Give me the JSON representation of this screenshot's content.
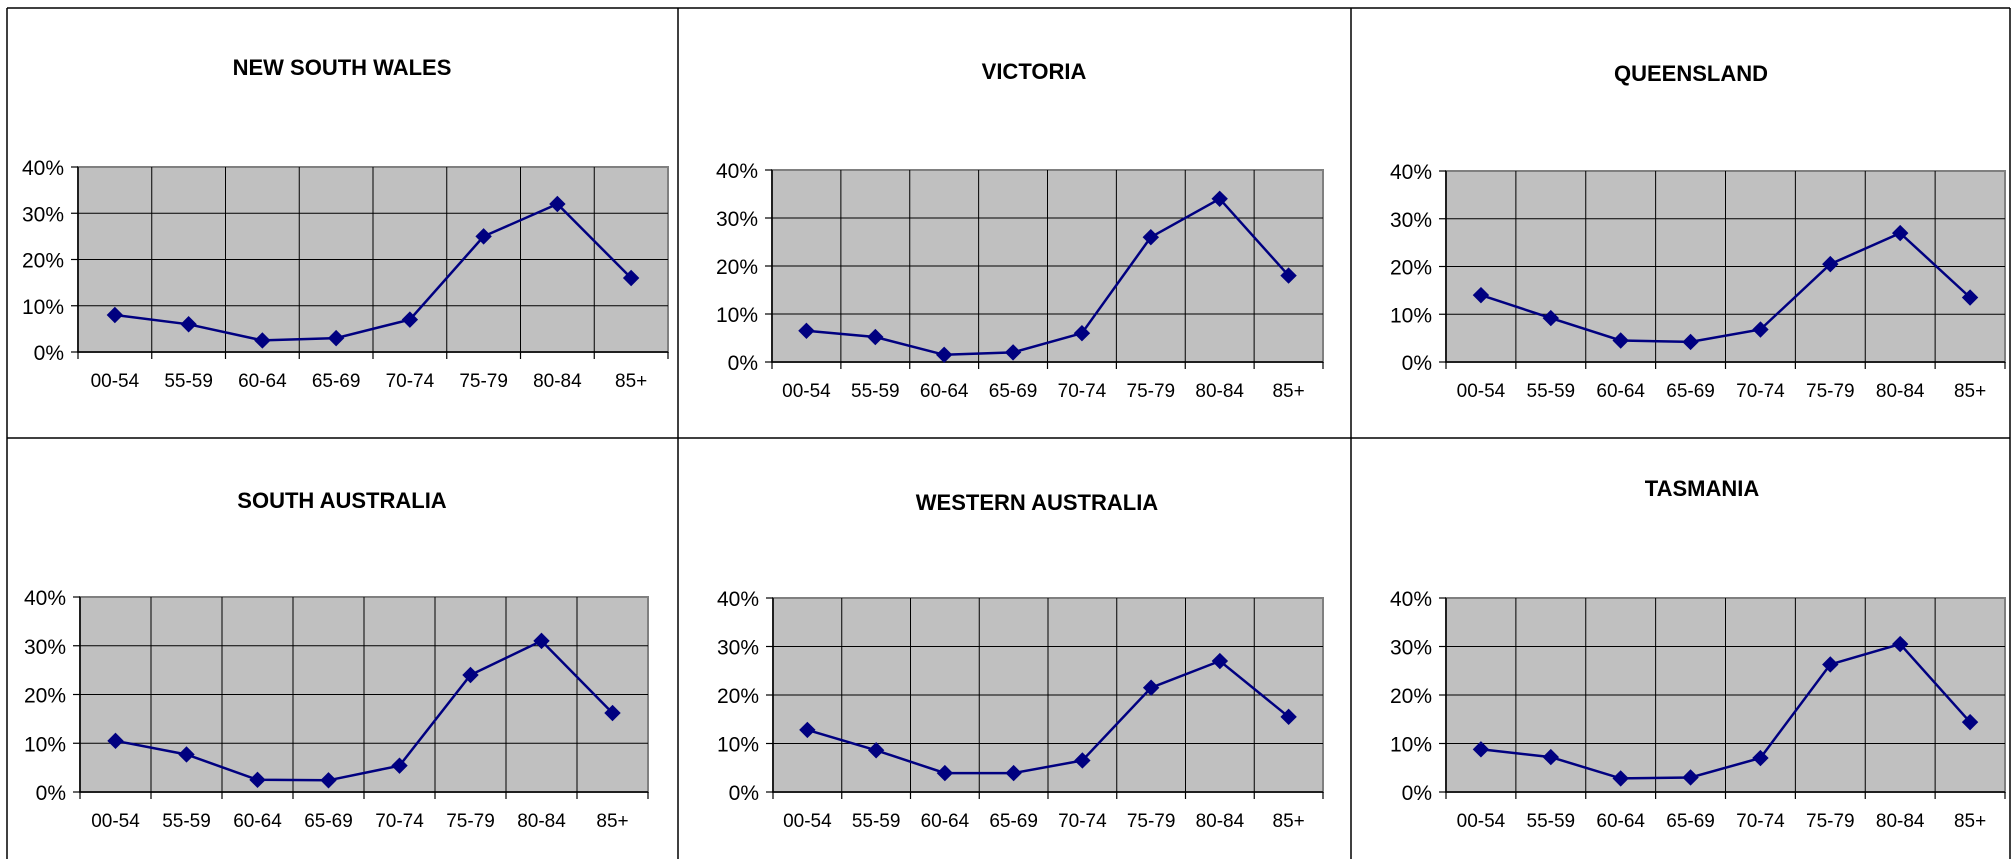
{
  "chart_data": [
    {
      "type": "line",
      "title": "NEW SOUTH WALES",
      "categories": [
        "00-54",
        "55-59",
        "60-64",
        "65-69",
        "70-74",
        "75-79",
        "80-84",
        "85+"
      ],
      "values": [
        8,
        6,
        2.5,
        3,
        7,
        25,
        32,
        16
      ],
      "ylim": [
        0,
        40
      ],
      "yticks": [
        "0%",
        "10%",
        "20%",
        "30%",
        "40%"
      ],
      "grid": true,
      "colors": {
        "line": "#000080",
        "plot_bg": "#c0c0c0"
      }
    },
    {
      "type": "line",
      "title": "VICTORIA",
      "categories": [
        "00-54",
        "55-59",
        "60-64",
        "65-69",
        "70-74",
        "75-79",
        "80-84",
        "85+"
      ],
      "values": [
        6.5,
        5.2,
        1.5,
        2,
        6,
        26,
        34,
        18
      ],
      "ylim": [
        0,
        40
      ],
      "yticks": [
        "0%",
        "10%",
        "20%",
        "30%",
        "40%"
      ],
      "grid": true,
      "colors": {
        "line": "#000080",
        "plot_bg": "#c0c0c0"
      }
    },
    {
      "type": "line",
      "title": "QUEENSLAND",
      "categories": [
        "00-54",
        "55-59",
        "60-64",
        "65-69",
        "70-74",
        "75-79",
        "80-84",
        "85+"
      ],
      "values": [
        14,
        9.2,
        4.5,
        4.2,
        6.8,
        20.5,
        27,
        13.5
      ],
      "ylim": [
        0,
        40
      ],
      "yticks": [
        "0%",
        "10%",
        "20%",
        "30%",
        "40%"
      ],
      "grid": true,
      "colors": {
        "line": "#000080",
        "plot_bg": "#c0c0c0"
      }
    },
    {
      "type": "line",
      "title": "SOUTH AUSTRALIA",
      "categories": [
        "00-54",
        "55-59",
        "60-64",
        "65-69",
        "70-74",
        "75-79",
        "80-84",
        "85+"
      ],
      "values": [
        10.5,
        7.7,
        2.5,
        2.4,
        5.4,
        24,
        31,
        16.2
      ],
      "ylim": [
        0,
        40
      ],
      "yticks": [
        "0%",
        "10%",
        "20%",
        "30%",
        "40%"
      ],
      "grid": true,
      "colors": {
        "line": "#000080",
        "plot_bg": "#c0c0c0"
      }
    },
    {
      "type": "line",
      "title": "WESTERN AUSTRALIA",
      "categories": [
        "00-54",
        "55-59",
        "60-64",
        "65-69",
        "70-74",
        "75-79",
        "80-84",
        "85+"
      ],
      "values": [
        12.8,
        8.6,
        3.9,
        3.9,
        6.5,
        21.5,
        27,
        15.5
      ],
      "ylim": [
        0,
        40
      ],
      "yticks": [
        "0%",
        "10%",
        "20%",
        "30%",
        "40%"
      ],
      "grid": true,
      "colors": {
        "line": "#000080",
        "plot_bg": "#c0c0c0"
      }
    },
    {
      "type": "line",
      "title": "TASMANIA",
      "categories": [
        "00-54",
        "55-59",
        "60-64",
        "65-69",
        "70-74",
        "75-79",
        "80-84",
        "85+"
      ],
      "values": [
        8.8,
        7.2,
        2.8,
        3,
        7,
        26.3,
        30.5,
        14.4
      ],
      "ylim": [
        0,
        40
      ],
      "yticks": [
        "0%",
        "10%",
        "20%",
        "30%",
        "40%"
      ],
      "grid": true,
      "colors": {
        "line": "#000080",
        "plot_bg": "#c0c0c0"
      }
    }
  ]
}
